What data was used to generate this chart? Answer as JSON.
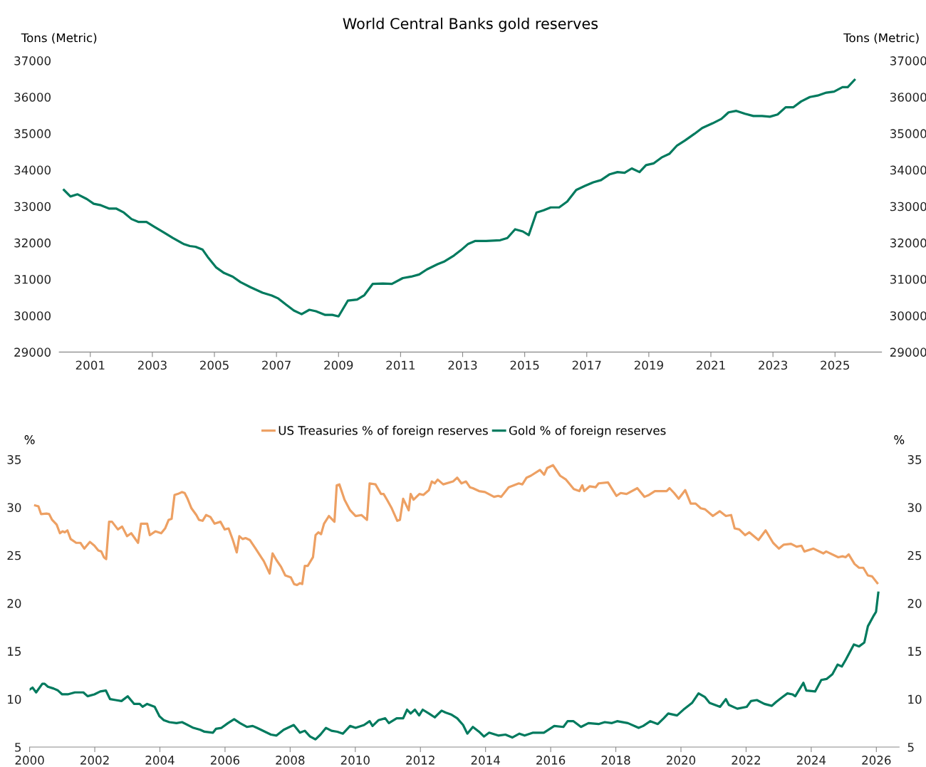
{
  "chart_data": [
    {
      "type": "line",
      "title": "World Central Banks gold reserves",
      "ylabel": "Tons (Metric)",
      "y2label": "Tons (Metric)",
      "xlim": [
        2000,
        2026.5
      ],
      "xticks": [
        2001,
        2003,
        2005,
        2007,
        2009,
        2011,
        2013,
        2015,
        2017,
        2019,
        2021,
        2023,
        2025
      ],
      "ylim": [
        29000,
        37000
      ],
      "yticks": [
        29000,
        30000,
        31000,
        32000,
        33000,
        34000,
        35000,
        36000,
        37000
      ],
      "y2lim": [
        29000,
        37000
      ],
      "y2ticks": [
        29000,
        30000,
        31000,
        32000,
        33000,
        34000,
        35000,
        36000,
        37000
      ],
      "grid": false,
      "legend": false,
      "series": [
        {
          "color": "#007a5e",
          "x": [
            2000.15,
            2000.36,
            2000.59,
            2000.89,
            2001.11,
            2001.34,
            2001.6,
            2001.83,
            2002.08,
            2002.33,
            2002.56,
            2002.81,
            2003.06,
            2003.36,
            2003.66,
            2004.0,
            2004.21,
            2004.39,
            2004.62,
            2004.81,
            2005.06,
            2005.31,
            2005.59,
            2005.84,
            2006.16,
            2006.55,
            2006.85,
            2007.06,
            2007.31,
            2007.56,
            2007.81,
            2008.06,
            2008.27,
            2008.57,
            2008.8,
            2009.0,
            2009.3,
            2009.6,
            2009.83,
            2010.1,
            2010.43,
            2010.72,
            2011.07,
            2011.34,
            2011.6,
            2011.85,
            2012.19,
            2012.42,
            2012.72,
            2012.95,
            2013.18,
            2013.41,
            2013.75,
            2014.21,
            2014.44,
            2014.69,
            2014.94,
            2015.13,
            2015.38,
            2015.61,
            2015.84,
            2016.11,
            2016.37,
            2016.66,
            2016.94,
            2017.21,
            2017.46,
            2017.74,
            2017.99,
            2018.22,
            2018.45,
            2018.7,
            2018.91,
            2019.16,
            2019.41,
            2019.66,
            2019.91,
            2020.17,
            2020.47,
            2020.72,
            2021.06,
            2021.34,
            2021.57,
            2021.82,
            2022.1,
            2022.37,
            2022.65,
            2022.9,
            2023.15,
            2023.41,
            2023.66,
            2023.91,
            2024.19,
            2024.44,
            2024.72,
            2024.97,
            2025.24,
            2025.41,
            2025.63
          ],
          "values": [
            33450,
            33270,
            33330,
            33200,
            33070,
            33030,
            32940,
            32940,
            32830,
            32650,
            32570,
            32570,
            32440,
            32290,
            32130,
            31970,
            31910,
            31890,
            31810,
            31580,
            31320,
            31170,
            31070,
            30920,
            30780,
            30630,
            30550,
            30470,
            30300,
            30140,
            30040,
            30160,
            30120,
            30020,
            30020,
            29980,
            30410,
            30440,
            30560,
            30870,
            30880,
            30870,
            31030,
            31070,
            31130,
            31270,
            31410,
            31490,
            31650,
            31800,
            31970,
            32050,
            32050,
            32070,
            32130,
            32370,
            32310,
            32210,
            32830,
            32890,
            32970,
            32970,
            33130,
            33450,
            33560,
            33660,
            33720,
            33880,
            33940,
            33920,
            34040,
            33940,
            34130,
            34180,
            34340,
            34440,
            34670,
            34810,
            34990,
            35150,
            35280,
            35400,
            35580,
            35620,
            35540,
            35480,
            35480,
            35460,
            35520,
            35720,
            35720,
            35880,
            36000,
            36040,
            36120,
            36150,
            36270,
            36270,
            36470
          ]
        }
      ]
    },
    {
      "type": "line",
      "ylabel": "%",
      "y2label": "%",
      "xlim": [
        2000,
        2026.7
      ],
      "xticks": [
        2000,
        2002,
        2004,
        2006,
        2008,
        2010,
        2012,
        2014,
        2016,
        2018,
        2020,
        2022,
        2024,
        2026
      ],
      "ylim": [
        5,
        35
      ],
      "yticks": [
        5,
        10,
        15,
        20,
        25,
        30,
        35
      ],
      "y2lim": [
        5,
        35
      ],
      "y2ticks": [
        5,
        10,
        15,
        20,
        25,
        30,
        35
      ],
      "grid": false,
      "legend": "top",
      "series": [
        {
          "name": "US Treasuries % of foreign reserves",
          "color": "#eda063",
          "x": [
            2000.17,
            2000.27,
            2000.35,
            2000.52,
            2000.6,
            2000.69,
            2000.83,
            2000.93,
            2001.01,
            2001.08,
            2001.16,
            2001.26,
            2001.43,
            2001.56,
            2001.68,
            2001.85,
            2001.99,
            2002.11,
            2002.2,
            2002.28,
            2002.35,
            2002.44,
            2002.53,
            2002.71,
            2002.84,
            2002.99,
            2003.12,
            2003.33,
            2003.42,
            2003.61,
            2003.69,
            2003.86,
            2004.04,
            2004.16,
            2004.27,
            2004.36,
            2004.45,
            2004.55,
            2004.68,
            2004.76,
            2004.85,
            2004.97,
            2005.12,
            2005.2,
            2005.31,
            2005.42,
            2005.55,
            2005.68,
            2005.86,
            2005.99,
            2006.11,
            2006.24,
            2006.36,
            2006.44,
            2006.54,
            2006.63,
            2006.76,
            2006.94,
            2007.11,
            2007.19,
            2007.37,
            2007.46,
            2007.58,
            2007.72,
            2007.85,
            2008.02,
            2008.12,
            2008.21,
            2008.3,
            2008.37,
            2008.45,
            2008.54,
            2008.7,
            2008.78,
            2008.87,
            2008.95,
            2009.04,
            2009.19,
            2009.36,
            2009.43,
            2009.51,
            2009.67,
            2009.84,
            2010.01,
            2010.19,
            2010.36,
            2010.44,
            2010.62,
            2010.79,
            2010.87,
            2010.99,
            2011.12,
            2011.29,
            2011.37,
            2011.47,
            2011.64,
            2011.7,
            2011.79,
            2011.97,
            2012.09,
            2012.26,
            2012.35,
            2012.44,
            2012.53,
            2012.7,
            2013.0,
            2013.13,
            2013.26,
            2013.4,
            2013.52,
            2013.61,
            2013.8,
            2013.98,
            2014.26,
            2014.39,
            2014.48,
            2014.71,
            2015.02,
            2015.13,
            2015.26,
            2015.39,
            2015.67,
            2015.8,
            2015.89,
            2016.07,
            2016.29,
            2016.47,
            2016.71,
            2016.88,
            2016.97,
            2017.03,
            2017.2,
            2017.38,
            2017.47,
            2017.76,
            2018.02,
            2018.15,
            2018.33,
            2018.66,
            2018.88,
            2019.02,
            2019.2,
            2019.37,
            2019.56,
            2019.65,
            2019.79,
            2019.93,
            2020.13,
            2020.3,
            2020.45,
            2020.61,
            2020.74,
            2020.98,
            2021.19,
            2021.38,
            2021.54,
            2021.65,
            2021.79,
            2021.97,
            2022.1,
            2022.38,
            2022.6,
            2022.83,
            2023.01,
            2023.15,
            2023.38,
            2023.55,
            2023.7,
            2023.79,
            2024.07,
            2024.37,
            2024.46,
            2024.83,
            2024.96,
            2025.06,
            2025.15,
            2025.33,
            2025.47,
            2025.6,
            2025.74,
            2025.87,
            2026.03
          ],
          "values": [
            30.2,
            30.1,
            29.3,
            29.35,
            29.3,
            28.7,
            28.2,
            27.3,
            27.5,
            27.4,
            27.6,
            26.7,
            26.3,
            26.3,
            25.7,
            26.4,
            26.0,
            25.5,
            25.4,
            24.8,
            24.6,
            28.5,
            28.5,
            27.7,
            28.0,
            27.0,
            27.3,
            26.3,
            28.3,
            28.3,
            27.1,
            27.5,
            27.3,
            27.8,
            28.7,
            28.8,
            31.3,
            31.4,
            31.6,
            31.5,
            30.9,
            29.9,
            29.2,
            28.7,
            28.6,
            29.2,
            29.0,
            28.3,
            28.5,
            27.7,
            27.8,
            26.6,
            25.3,
            27.0,
            26.7,
            26.8,
            26.6,
            25.7,
            24.8,
            24.4,
            23.1,
            25.2,
            24.5,
            23.8,
            22.9,
            22.7,
            22.0,
            21.9,
            22.1,
            22.0,
            23.9,
            23.9,
            24.8,
            27.1,
            27.4,
            27.2,
            28.3,
            29.1,
            28.5,
            32.3,
            32.4,
            30.8,
            29.7,
            29.1,
            29.2,
            28.7,
            32.5,
            32.4,
            31.4,
            31.4,
            30.7,
            29.9,
            28.6,
            28.7,
            30.9,
            29.7,
            31.4,
            30.8,
            31.4,
            31.3,
            31.8,
            32.7,
            32.5,
            32.9,
            32.4,
            32.7,
            33.1,
            32.5,
            32.7,
            32.1,
            32.0,
            31.7,
            31.6,
            31.1,
            31.2,
            31.1,
            32.1,
            32.5,
            32.4,
            33.1,
            33.3,
            33.9,
            33.4,
            34.1,
            34.4,
            33.3,
            32.9,
            31.9,
            31.7,
            32.3,
            31.7,
            32.2,
            32.1,
            32.5,
            32.6,
            31.2,
            31.5,
            31.4,
            32.0,
            31.1,
            31.3,
            31.7,
            31.7,
            31.7,
            32.0,
            31.5,
            30.9,
            31.8,
            30.4,
            30.4,
            29.9,
            29.8,
            29.1,
            29.6,
            29.1,
            29.2,
            27.8,
            27.7,
            27.1,
            27.4,
            26.6,
            27.6,
            26.3,
            25.7,
            26.1,
            26.2,
            25.9,
            26.0,
            25.4,
            25.7,
            25.2,
            25.4,
            24.8,
            24.9,
            24.8,
            25.1,
            24.1,
            23.7,
            23.7,
            22.9,
            22.8,
            22.1
          ]
        },
        {
          "name": "Gold % of foreign reserves",
          "color": "#007a5e",
          "x": [
            2000.0,
            2000.09,
            2000.2,
            2000.39,
            2000.46,
            2000.56,
            2000.74,
            2000.87,
            2001.0,
            2001.17,
            2001.39,
            2001.65,
            2001.78,
            2001.99,
            2002.17,
            2002.34,
            2002.47,
            2002.64,
            2002.82,
            2003.01,
            2003.21,
            2003.38,
            2003.47,
            2003.61,
            2003.84,
            2003.99,
            2004.12,
            2004.29,
            2004.51,
            2004.68,
            2005.03,
            2005.24,
            2005.37,
            2005.63,
            2005.72,
            2005.89,
            2006.09,
            2006.28,
            2006.46,
            2006.67,
            2006.85,
            2006.98,
            2007.41,
            2007.58,
            2007.8,
            2008.11,
            2008.3,
            2008.45,
            2008.61,
            2008.78,
            2008.93,
            2009.1,
            2009.27,
            2009.45,
            2009.62,
            2009.84,
            2010.01,
            2010.27,
            2010.44,
            2010.53,
            2010.71,
            2010.92,
            2011.03,
            2011.27,
            2011.47,
            2011.59,
            2011.7,
            2011.83,
            2011.96,
            2012.07,
            2012.26,
            2012.44,
            2012.65,
            2012.77,
            2012.94,
            2013.13,
            2013.31,
            2013.44,
            2013.61,
            2013.8,
            2013.95,
            2014.11,
            2014.39,
            2014.61,
            2014.82,
            2015.04,
            2015.2,
            2015.46,
            2015.79,
            2016.11,
            2016.39,
            2016.52,
            2016.7,
            2016.93,
            2017.16,
            2017.47,
            2017.66,
            2017.88,
            2018.04,
            2018.37,
            2018.7,
            2018.84,
            2019.06,
            2019.29,
            2019.47,
            2019.61,
            2019.88,
            2020.11,
            2020.34,
            2020.54,
            2020.74,
            2020.88,
            2021.2,
            2021.38,
            2021.47,
            2021.73,
            2022.02,
            2022.15,
            2022.33,
            2022.56,
            2022.79,
            2022.92,
            2023.11,
            2023.27,
            2023.42,
            2023.51,
            2023.76,
            2023.85,
            2024.12,
            2024.31,
            2024.47,
            2024.65,
            2024.81,
            2024.94,
            2025.06,
            2025.31,
            2025.47,
            2025.63,
            2025.74,
            2025.9,
            2025.99,
            2026.06
          ],
          "values": [
            11.0,
            11.2,
            10.7,
            11.6,
            11.6,
            11.3,
            11.1,
            10.9,
            10.5,
            10.5,
            10.7,
            10.7,
            10.3,
            10.5,
            10.8,
            10.9,
            10.0,
            9.9,
            9.8,
            10.3,
            9.5,
            9.5,
            9.2,
            9.5,
            9.2,
            8.2,
            7.8,
            7.6,
            7.5,
            7.6,
            7.0,
            6.8,
            6.6,
            6.5,
            6.9,
            7.0,
            7.5,
            7.9,
            7.5,
            7.1,
            7.2,
            7.0,
            6.3,
            6.2,
            6.8,
            7.3,
            6.5,
            6.7,
            6.1,
            5.8,
            6.3,
            7.0,
            6.7,
            6.6,
            6.4,
            7.2,
            7.0,
            7.3,
            7.7,
            7.2,
            7.8,
            8.0,
            7.5,
            8.0,
            8.0,
            8.9,
            8.5,
            8.9,
            8.3,
            8.9,
            8.5,
            8.1,
            8.8,
            8.6,
            8.4,
            8.0,
            7.3,
            6.4,
            7.1,
            6.6,
            6.1,
            6.5,
            6.2,
            6.3,
            6.0,
            6.4,
            6.2,
            6.5,
            6.5,
            7.2,
            7.1,
            7.7,
            7.7,
            7.1,
            7.5,
            7.4,
            7.6,
            7.5,
            7.7,
            7.5,
            7.0,
            7.2,
            7.7,
            7.4,
            8.0,
            8.5,
            8.3,
            9.0,
            9.6,
            10.6,
            10.2,
            9.6,
            9.2,
            10.0,
            9.4,
            9.0,
            9.2,
            9.8,
            9.9,
            9.5,
            9.3,
            9.7,
            10.2,
            10.6,
            10.5,
            10.3,
            11.7,
            10.9,
            10.8,
            12.0,
            12.1,
            12.6,
            13.6,
            13.4,
            14.1,
            15.7,
            15.5,
            15.9,
            17.6,
            18.6,
            19.1,
            21.1
          ]
        }
      ]
    }
  ]
}
